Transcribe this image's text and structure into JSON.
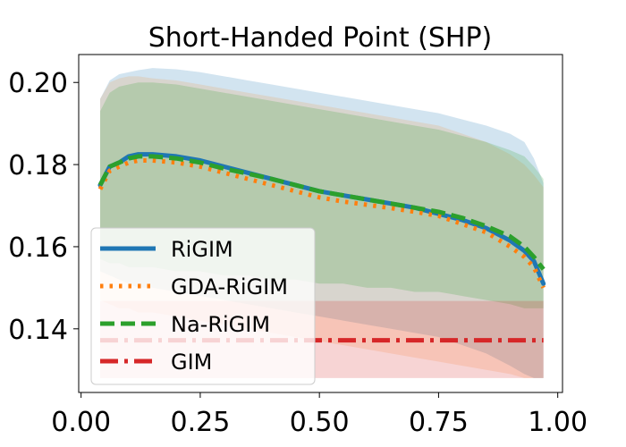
{
  "chart_data": {
    "type": "line",
    "title": "Short-Handed Point (SHP)",
    "xlabel": "",
    "ylabel": "",
    "xlim": [
      -0.005,
      1.01
    ],
    "ylim": [
      0.1245,
      0.2068
    ],
    "x_ticks": [
      0.0,
      0.25,
      0.5,
      0.75,
      1.0
    ],
    "x_tick_labels": [
      "0.00",
      "0.25",
      "0.50",
      "0.75",
      "1.00"
    ],
    "y_ticks": [
      0.14,
      0.16,
      0.18,
      0.2
    ],
    "y_tick_labels": [
      "0.14",
      "0.16",
      "0.18",
      "0.20"
    ],
    "grid": false,
    "legend_position": "lower-left",
    "x": [
      0.04,
      0.06,
      0.08,
      0.1,
      0.12,
      0.15,
      0.2,
      0.25,
      0.3,
      0.35,
      0.4,
      0.45,
      0.5,
      0.55,
      0.6,
      0.65,
      0.7,
      0.75,
      0.8,
      0.85,
      0.9,
      0.93,
      0.95,
      0.97
    ],
    "series": [
      {
        "name": "RiGIM",
        "color": "#1f77b4",
        "style": "solid",
        "values": [
          0.175,
          0.1795,
          0.1805,
          0.182,
          0.1825,
          0.1825,
          0.182,
          0.181,
          0.1795,
          0.178,
          0.1765,
          0.175,
          0.1735,
          0.1725,
          0.1715,
          0.1705,
          0.1695,
          0.168,
          0.1665,
          0.1645,
          0.1615,
          0.159,
          0.1565,
          0.151
        ],
        "band": {
          "lower": [
            0.154,
            0.153,
            0.152,
            0.151,
            0.15,
            0.15,
            0.149,
            0.148,
            0.147,
            0.146,
            0.145,
            0.144,
            0.143,
            0.142,
            0.141,
            0.14,
            0.139,
            0.138,
            0.136,
            0.134,
            0.131,
            0.129,
            0.128,
            0.128
          ],
          "upper": [
            0.196,
            0.2005,
            0.202,
            0.2025,
            0.203,
            0.2035,
            0.2032,
            0.2025,
            0.2015,
            0.2005,
            0.1995,
            0.1985,
            0.1975,
            0.1965,
            0.1955,
            0.1945,
            0.1935,
            0.1925,
            0.191,
            0.1895,
            0.1875,
            0.1855,
            0.1815,
            0.1755
          ],
          "color": "#1f77b4",
          "opacity": 0.2
        }
      },
      {
        "name": "GDA-RiGIM",
        "color": "#ff7f0e",
        "style": "dotted",
        "values": [
          0.174,
          0.1785,
          0.1795,
          0.1805,
          0.181,
          0.181,
          0.1805,
          0.1795,
          0.178,
          0.1765,
          0.175,
          0.1735,
          0.172,
          0.171,
          0.1702,
          0.1694,
          0.1685,
          0.1675,
          0.1655,
          0.1635,
          0.16,
          0.1575,
          0.155,
          0.15
        ],
        "band": {
          "lower": [
            0.147,
            0.146,
            0.145,
            0.145,
            0.144,
            0.144,
            0.143,
            0.142,
            0.141,
            0.14,
            0.139,
            0.138,
            0.137,
            0.136,
            0.135,
            0.134,
            0.133,
            0.132,
            0.131,
            0.13,
            0.129,
            0.128,
            0.128,
            0.128
          ],
          "upper": [
            0.196,
            0.2,
            0.201,
            0.2015,
            0.2015,
            0.201,
            0.2005,
            0.1995,
            0.1985,
            0.1975,
            0.1965,
            0.1955,
            0.1945,
            0.1935,
            0.1925,
            0.1915,
            0.1905,
            0.1895,
            0.1875,
            0.1855,
            0.1825,
            0.18,
            0.1775,
            0.1745
          ],
          "color": "#ff7f0e",
          "opacity": 0.15
        }
      },
      {
        "name": "Na-RiGIM",
        "color": "#2ca02c",
        "style": "dashed",
        "values": [
          0.175,
          0.1795,
          0.1805,
          0.1815,
          0.182,
          0.182,
          0.1815,
          0.1805,
          0.179,
          0.1778,
          0.1765,
          0.175,
          0.1735,
          0.1725,
          0.1715,
          0.1705,
          0.1695,
          0.1685,
          0.167,
          0.165,
          0.1625,
          0.16,
          0.1575,
          0.1545
        ],
        "band": {
          "lower": [
            0.157,
            0.156,
            0.156,
            0.155,
            0.155,
            0.155,
            0.154,
            0.154,
            0.153,
            0.153,
            0.152,
            0.152,
            0.151,
            0.151,
            0.15,
            0.15,
            0.149,
            0.149,
            0.148,
            0.147,
            0.146,
            0.145,
            0.145,
            0.145
          ],
          "upper": [
            0.193,
            0.1975,
            0.199,
            0.1995,
            0.2,
            0.2,
            0.1995,
            0.1985,
            0.1975,
            0.1965,
            0.1955,
            0.1945,
            0.1935,
            0.1925,
            0.1915,
            0.1905,
            0.1895,
            0.1885,
            0.187,
            0.1855,
            0.1835,
            0.182,
            0.1795,
            0.1765
          ],
          "color": "#2ca02c",
          "opacity": 0.2
        }
      },
      {
        "name": "GIM",
        "color": "#d62728",
        "style": "dashdot",
        "values": [
          0.1372,
          0.1372,
          0.1372,
          0.1372,
          0.1372,
          0.1372,
          0.1372,
          0.1372,
          0.1372,
          0.1372,
          0.1372,
          0.1372,
          0.1372,
          0.1372,
          0.1372,
          0.1372,
          0.1372,
          0.1372,
          0.1372,
          0.1372,
          0.1372,
          0.1372,
          0.1372,
          0.1372
        ],
        "band": {
          "lower": [
            0.128,
            0.128,
            0.128,
            0.128,
            0.128,
            0.128,
            0.128,
            0.128,
            0.128,
            0.128,
            0.128,
            0.128,
            0.128,
            0.128,
            0.128,
            0.128,
            0.128,
            0.128,
            0.128,
            0.128,
            0.128,
            0.128,
            0.128,
            0.128
          ],
          "upper": [
            0.1468,
            0.1468,
            0.1468,
            0.1468,
            0.1468,
            0.1468,
            0.1468,
            0.1468,
            0.1468,
            0.1468,
            0.1468,
            0.1468,
            0.1468,
            0.1468,
            0.1468,
            0.1468,
            0.1468,
            0.1468,
            0.1468,
            0.1468,
            0.1468,
            0.1468,
            0.1468,
            0.1468
          ],
          "color": "#d62728",
          "opacity": 0.2
        }
      }
    ]
  }
}
